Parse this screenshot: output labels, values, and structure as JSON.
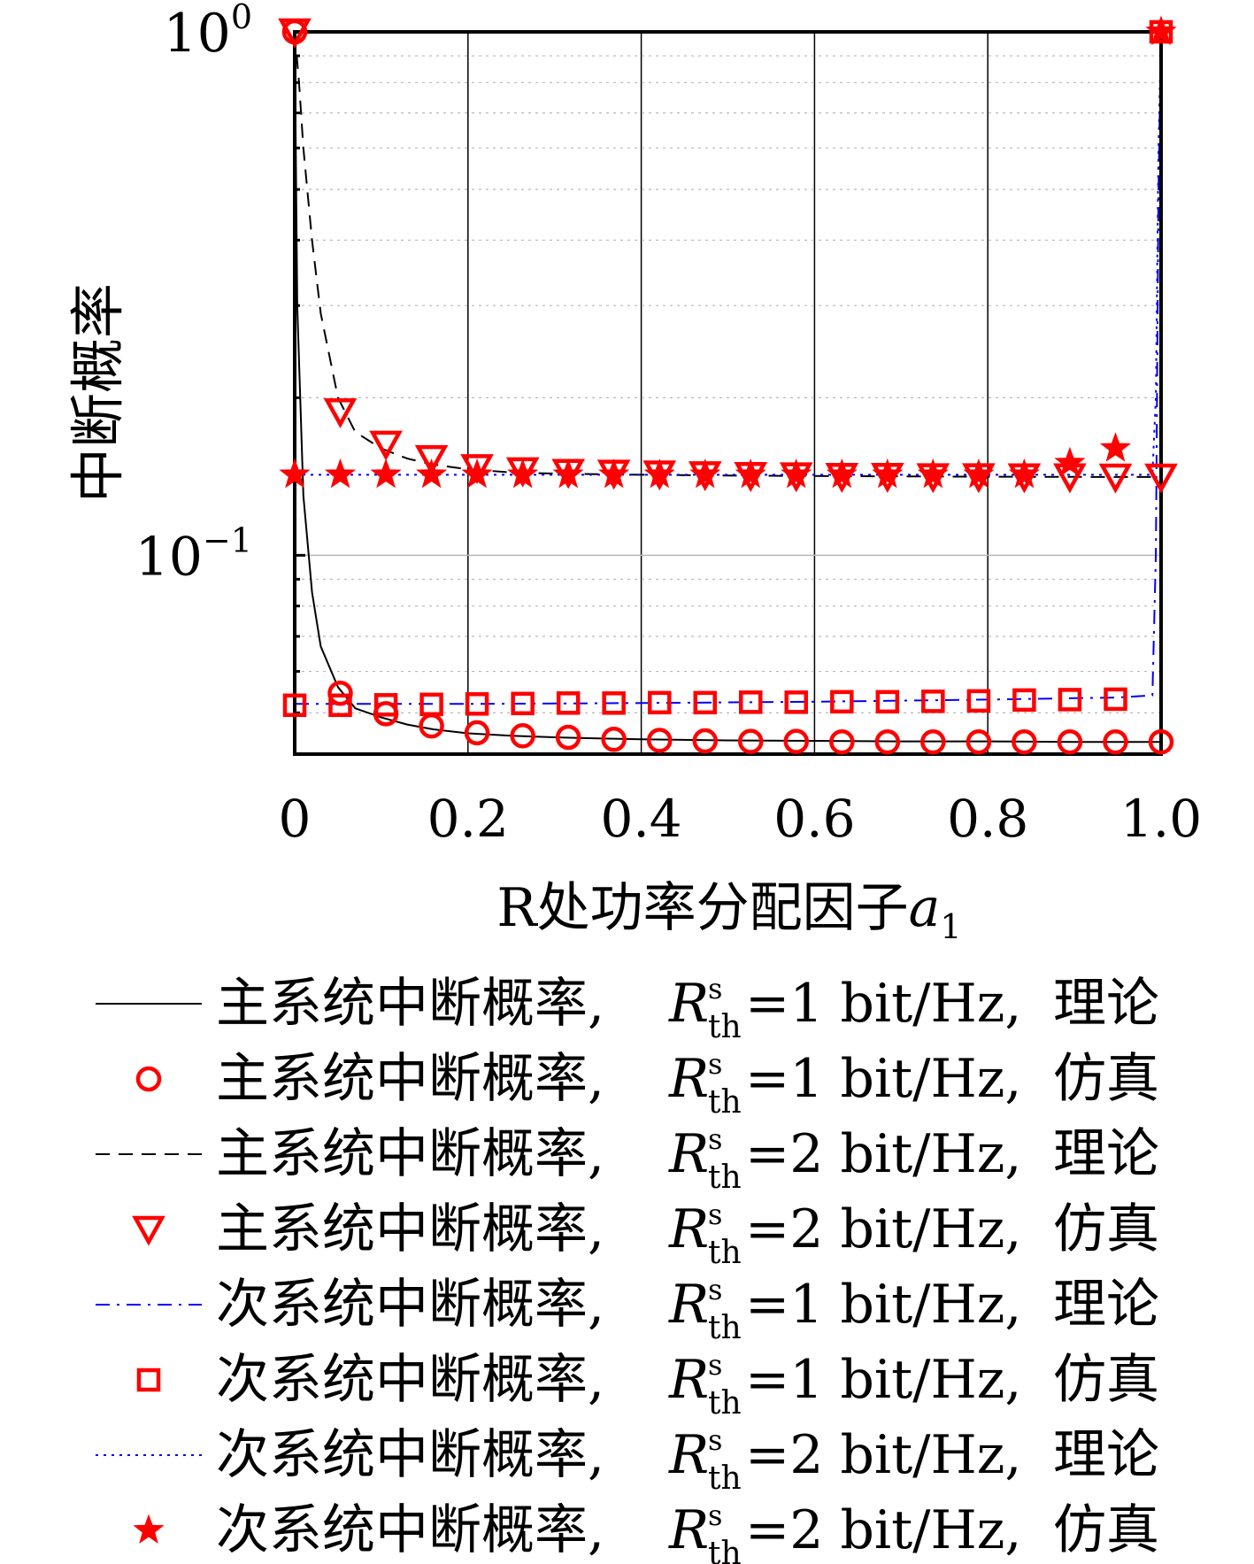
{
  "chart_data": {
    "type": "line",
    "xlabel": "R处功率分配因子",
    "xlabel_var": "a",
    "xlabel_sub": "1",
    "ylabel": "中断概率",
    "yscale": "log",
    "xlim": [
      0,
      1.0
    ],
    "ylim": [
      0.0417,
      1.0
    ],
    "x_ticks": [
      "0",
      "0.2",
      "0.4",
      "0.6",
      "0.8",
      "1.0"
    ],
    "y_ticks": [
      {
        "base": "10",
        "exp": "0",
        "value": 1.0
      },
      {
        "base": "10",
        "exp": "−1",
        "value": 0.1
      }
    ],
    "grid": "major-vertical + dotted minor-horizontal",
    "legend_position": "below",
    "series": [
      {
        "name": "主系统中断概率, R=1 bit/Hz, 理论",
        "style": "line-solid",
        "color": "#000000",
        "x": [
          0,
          0.003,
          0.01,
          0.02,
          0.03,
          0.05,
          0.07,
          0.1,
          0.13,
          0.16,
          0.2,
          0.25,
          0.3,
          0.35,
          0.4,
          0.5,
          0.6,
          0.7,
          0.8,
          0.9,
          1.0
        ],
        "y": [
          1.0,
          0.3,
          0.13,
          0.085,
          0.067,
          0.056,
          0.051,
          0.049,
          0.0475,
          0.0465,
          0.0457,
          0.0452,
          0.0449,
          0.0447,
          0.0445,
          0.0443,
          0.0442,
          0.0441,
          0.0441,
          0.044,
          0.044
        ]
      },
      {
        "name": "主系统中断概率, R=1 bit/Hz, 仿真",
        "style": "marker-circle",
        "color": "#ff0000",
        "x": [
          0,
          0.0526,
          0.1053,
          0.1579,
          0.2105,
          0.2632,
          0.3158,
          0.3684,
          0.4211,
          0.4737,
          0.5263,
          0.5789,
          0.6316,
          0.6842,
          0.7368,
          0.7895,
          0.8421,
          0.8947,
          0.9474,
          1.0
        ],
        "y": [
          1.0,
          0.0545,
          0.0498,
          0.0472,
          0.0458,
          0.0452,
          0.0449,
          0.0445,
          0.0443,
          0.0442,
          0.0441,
          0.0441,
          0.044,
          0.044,
          0.044,
          0.044,
          0.044,
          0.044,
          0.044,
          0.044
        ]
      },
      {
        "name": "主系统中断概率, R=2 bit/Hz, 理论",
        "style": "line-dashed",
        "color": "#000000",
        "x": [
          0,
          0.005,
          0.01,
          0.02,
          0.03,
          0.05,
          0.07,
          0.1,
          0.13,
          0.16,
          0.2,
          0.25,
          0.3,
          0.4,
          0.5,
          0.6,
          0.7,
          0.8,
          0.9,
          1.0
        ],
        "y": [
          1.0,
          0.8,
          0.6,
          0.4,
          0.29,
          0.2,
          0.172,
          0.16,
          0.153,
          0.149,
          0.146,
          0.144,
          0.1432,
          0.1425,
          0.142,
          0.1417,
          0.1415,
          0.1413,
          0.1412,
          0.1411
        ]
      },
      {
        "name": "主系统中断概率, R=2 bit/Hz, 仿真",
        "style": "marker-triangle-down",
        "color": "#ff0000",
        "x": [
          0,
          0.0526,
          0.1053,
          0.1579,
          0.2105,
          0.2632,
          0.3158,
          0.3684,
          0.4211,
          0.4737,
          0.5263,
          0.5789,
          0.6316,
          0.6842,
          0.7368,
          0.7895,
          0.8421,
          0.8947,
          0.9474,
          1.0
        ],
        "y": [
          1.0,
          0.188,
          0.163,
          0.153,
          0.147,
          0.145,
          0.144,
          0.1435,
          0.143,
          0.1425,
          0.142,
          0.1418,
          0.1415,
          0.1415,
          0.1413,
          0.1413,
          0.1412,
          0.1412,
          0.1411,
          0.1411
        ]
      },
      {
        "name": "次系统中断概率, R=1 bit/Hz, 理论",
        "style": "line-dashdot",
        "color": "#0000ff",
        "x": [
          0,
          0.2,
          0.4,
          0.6,
          0.8,
          0.95,
          0.99,
          0.994,
          0.997,
          1.0
        ],
        "y": [
          0.052,
          0.052,
          0.0522,
          0.0525,
          0.053,
          0.0535,
          0.054,
          0.1,
          0.5,
          1.0
        ]
      },
      {
        "name": "次系统中断概率, R=1 bit/Hz, 仿真",
        "style": "marker-square",
        "color": "#ff0000",
        "x": [
          0,
          0.0526,
          0.1053,
          0.1579,
          0.2105,
          0.2632,
          0.3158,
          0.3684,
          0.4211,
          0.4737,
          0.5263,
          0.5789,
          0.6316,
          0.6842,
          0.7368,
          0.7895,
          0.8421,
          0.8947,
          0.9474,
          1.0
        ],
        "y": [
          0.0517,
          0.0517,
          0.0518,
          0.0519,
          0.052,
          0.0521,
          0.0522,
          0.0522,
          0.0523,
          0.0523,
          0.0524,
          0.0524,
          0.0525,
          0.0525,
          0.0526,
          0.0527,
          0.0529,
          0.053,
          0.0531,
          1.0
        ]
      },
      {
        "name": "次系统中断概率, R=2 bit/Hz, 理论",
        "style": "line-dotted",
        "color": "#0000ff",
        "x": [
          0,
          0.2,
          0.4,
          0.6,
          0.8,
          0.95,
          0.99,
          0.994,
          0.997,
          1.0
        ],
        "y": [
          0.1425,
          0.1425,
          0.1425,
          0.1425,
          0.1425,
          0.1425,
          0.1425,
          0.2,
          0.6,
          1.0
        ]
      },
      {
        "name": "次系统中断概率, R=2 bit/Hz, 仿真",
        "style": "marker-star",
        "color": "#ff0000",
        "x": [
          0,
          0.0526,
          0.1053,
          0.1579,
          0.2105,
          0.2632,
          0.3158,
          0.3684,
          0.4211,
          0.4737,
          0.5263,
          0.5789,
          0.6316,
          0.6842,
          0.7368,
          0.7895,
          0.8421,
          0.8947,
          0.9474,
          1.0
        ],
        "y": [
          0.1425,
          0.1425,
          0.1425,
          0.1425,
          0.1425,
          0.1425,
          0.1425,
          0.1425,
          0.1425,
          0.1425,
          0.1425,
          0.1425,
          0.1425,
          0.1425,
          0.1425,
          0.1425,
          0.1425,
          0.15,
          0.16,
          1.0
        ]
      }
    ],
    "legend": [
      {
        "label": "主系统中断概率,",
        "R": "R",
        "sup": "s",
        "sub": "th",
        "rate": "=1 bit/Hz,",
        "kind": "理论"
      },
      {
        "label": "主系统中断概率,",
        "R": "R",
        "sup": "s",
        "sub": "th",
        "rate": "=1 bit/Hz,",
        "kind": "仿真"
      },
      {
        "label": "主系统中断概率,",
        "R": "R",
        "sup": "s",
        "sub": "th",
        "rate": "=2 bit/Hz,",
        "kind": "理论"
      },
      {
        "label": "主系统中断概率,",
        "R": "R",
        "sup": "s",
        "sub": "th",
        "rate": "=2 bit/Hz,",
        "kind": "仿真"
      },
      {
        "label": "次系统中断概率,",
        "R": "R",
        "sup": "s",
        "sub": "th",
        "rate": "=1 bit/Hz,",
        "kind": "理论"
      },
      {
        "label": "次系统中断概率,",
        "R": "R",
        "sup": "s",
        "sub": "th",
        "rate": "=1 bit/Hz,",
        "kind": "仿真"
      },
      {
        "label": "次系统中断概率,",
        "R": "R",
        "sup": "s",
        "sub": "th",
        "rate": "=2 bit/Hz,",
        "kind": "理论"
      },
      {
        "label": "次系统中断概率,",
        "R": "R",
        "sup": "s",
        "sub": "th",
        "rate": "=2 bit/Hz,",
        "kind": "仿真"
      }
    ]
  }
}
